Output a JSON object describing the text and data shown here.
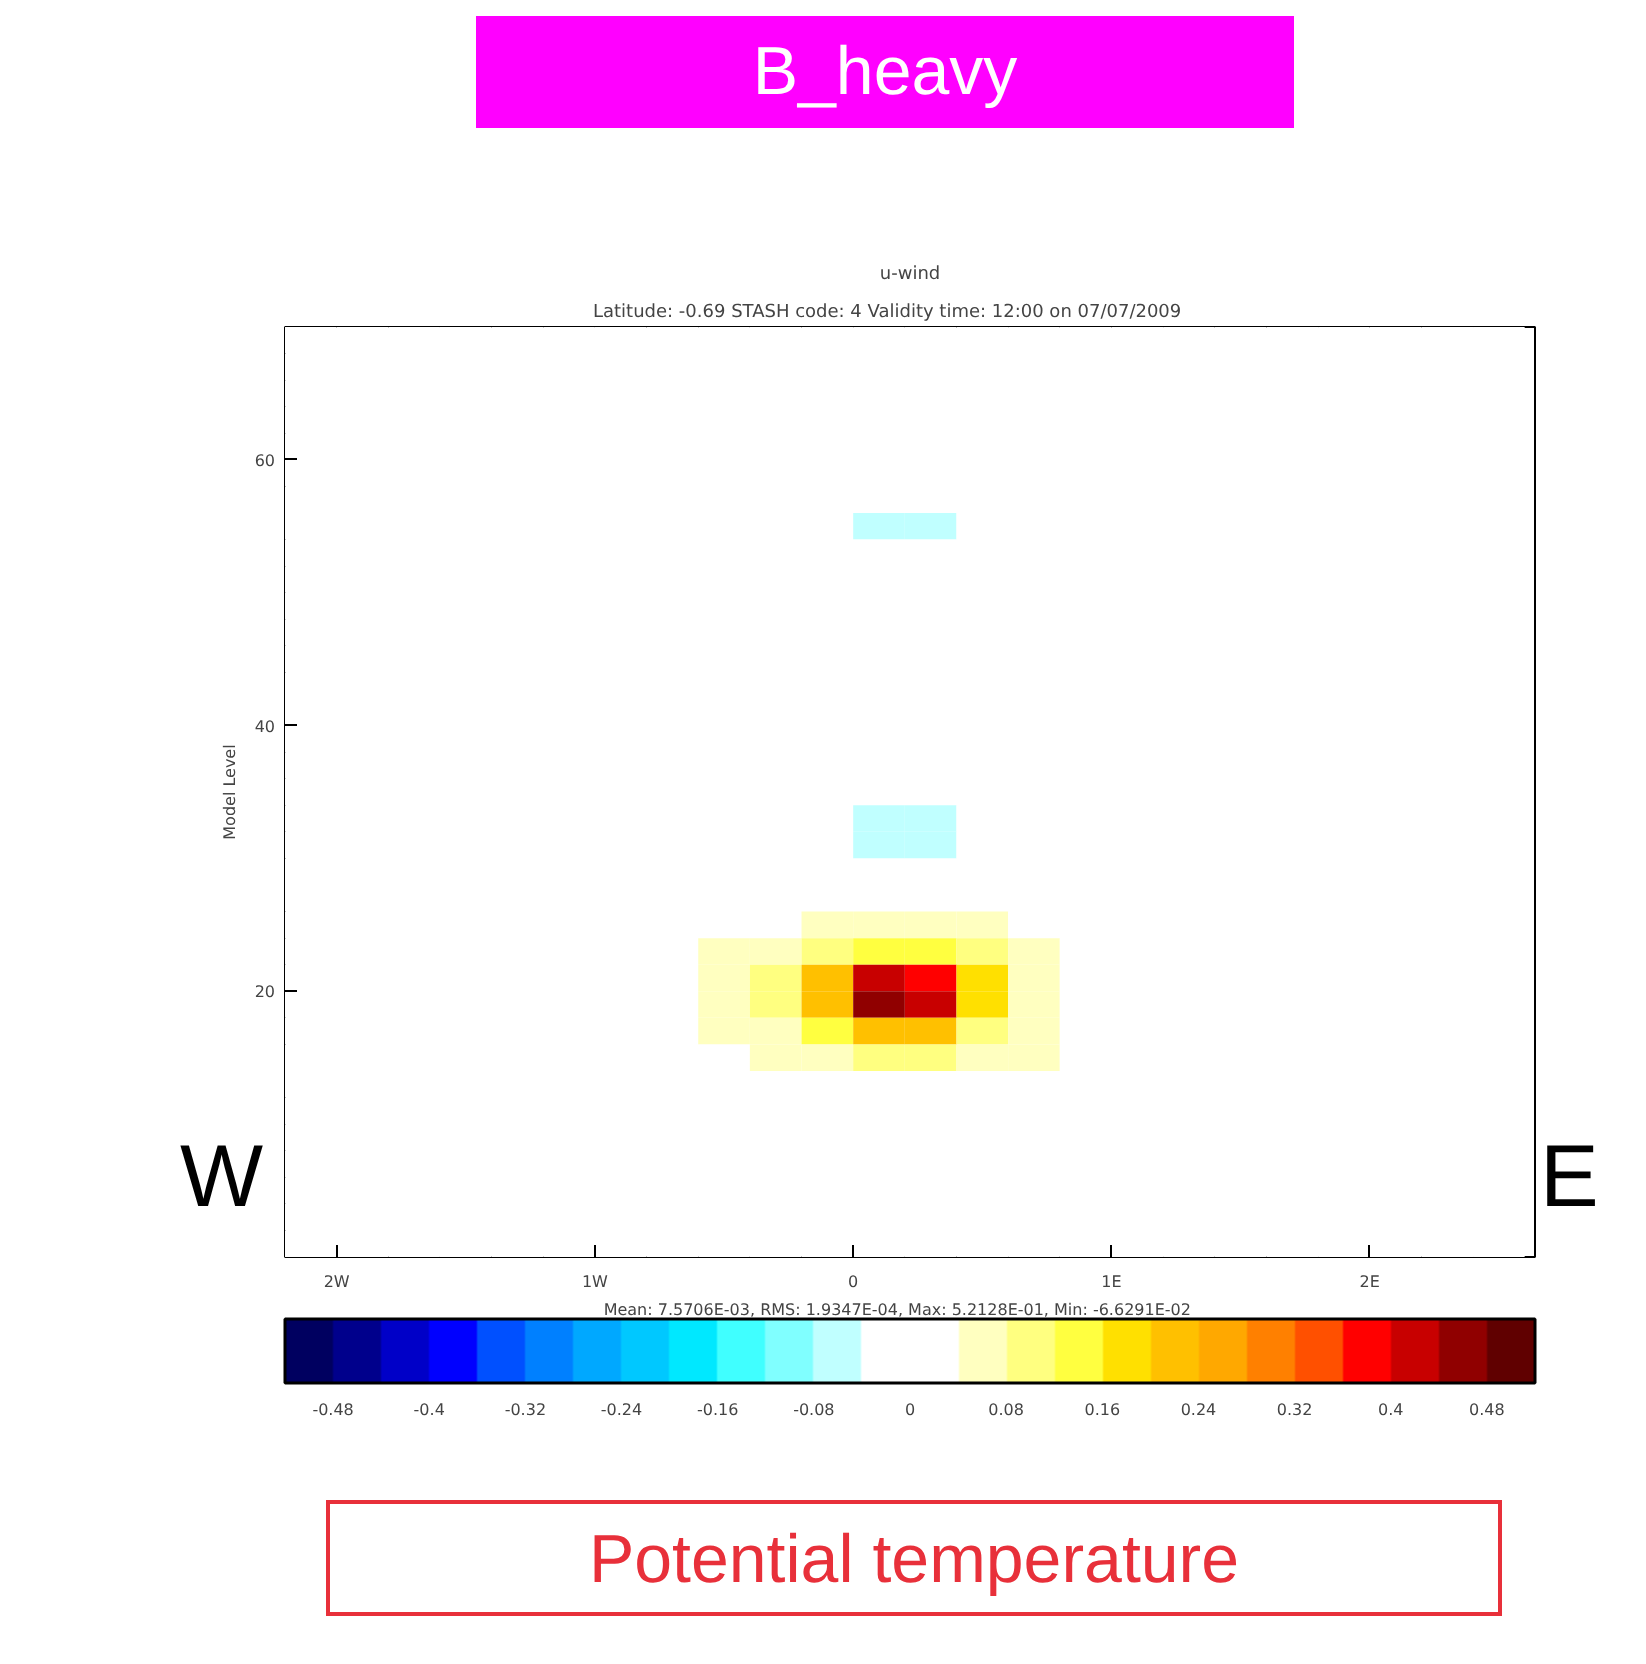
{
  "chart_data": {
    "type": "heatmap",
    "title": "u-wind",
    "subtitle": "Latitude:  -0.69  STASH code:      4  Validity time: 12:00 on 07/07/2009",
    "ylabel": "Model Level",
    "annotations": [
      "Mean: 7.5706E-03,  RMS:  1.9347E-04,  Max:  5.2128E-01,  Min: -6.6291E-02",
      "W",
      "E",
      "B_heavy",
      "Potential temperature"
    ],
    "x": [
      -2.1,
      -1.9,
      -1.7,
      -1.5,
      -1.3,
      -1.1,
      -0.9,
      -0.7,
      -0.5,
      -0.3,
      -0.1,
      0.1,
      0.3,
      0.5,
      0.7,
      0.9,
      1.1,
      1.3,
      1.5,
      1.7,
      1.9,
      2.1,
      2.3,
      2.5
    ],
    "y": [
      69,
      67,
      65,
      63,
      61,
      59,
      57,
      55,
      53,
      51,
      49,
      47,
      45,
      43,
      41,
      39,
      37,
      35,
      33,
      31,
      29,
      27,
      25,
      23,
      21,
      19,
      17,
      15,
      13,
      11,
      9,
      7,
      5,
      3,
      1
    ],
    "cells": [
      [
        0,
        0,
        0,
        0,
        0,
        0,
        0,
        0,
        0,
        0,
        0,
        0,
        0,
        0,
        0,
        0,
        0,
        0,
        0,
        0,
        0,
        0,
        0,
        0
      ],
      [
        0,
        0,
        0,
        0,
        0,
        0,
        0,
        0,
        0,
        0,
        0,
        0,
        0,
        0,
        0,
        0,
        0,
        0,
        0,
        0,
        0,
        0,
        0,
        0
      ],
      [
        0,
        0,
        0,
        0,
        0,
        0,
        0,
        0,
        0,
        0,
        0,
        0,
        0,
        0,
        0,
        0,
        0,
        0,
        0,
        0,
        0,
        0,
        0,
        0
      ],
      [
        0,
        0,
        0,
        0,
        0,
        0,
        0,
        0,
        0,
        0,
        0,
        0,
        0,
        0,
        0,
        0,
        0,
        0,
        0,
        0,
        0,
        0,
        0,
        0
      ],
      [
        0,
        0,
        0,
        0,
        0,
        0,
        0,
        0,
        0,
        0,
        0,
        0,
        0,
        0,
        0,
        0,
        0,
        0,
        0,
        0,
        0,
        0,
        0,
        0
      ],
      [
        0,
        0,
        0,
        0,
        0,
        0,
        0,
        0,
        0,
        0,
        0,
        0,
        0,
        0,
        0,
        0,
        0,
        0,
        0,
        0,
        0,
        0,
        0,
        0
      ],
      [
        0,
        0,
        0,
        0,
        0,
        0,
        0,
        0,
        0,
        0,
        0,
        0,
        0,
        0,
        0,
        0,
        0,
        0,
        0,
        0,
        0,
        0,
        0,
        0
      ],
      [
        0,
        0,
        0,
        0,
        0,
        0,
        0,
        0,
        0,
        0,
        0,
        -0.06,
        -0.06,
        0,
        0,
        0,
        0,
        0,
        0,
        0,
        0,
        0,
        0,
        0
      ],
      [
        0,
        0,
        0,
        0,
        0,
        0,
        0,
        0,
        0,
        0,
        0,
        0,
        0,
        0,
        0,
        0,
        0,
        0,
        0,
        0,
        0,
        0,
        0,
        0
      ],
      [
        0,
        0,
        0,
        0,
        0,
        0,
        0,
        0,
        0,
        0,
        0,
        0,
        0,
        0,
        0,
        0,
        0,
        0,
        0,
        0,
        0,
        0,
        0,
        0
      ],
      [
        0,
        0,
        0,
        0,
        0,
        0,
        0,
        0,
        0,
        0,
        0,
        0,
        0,
        0,
        0,
        0,
        0,
        0,
        0,
        0,
        0,
        0,
        0,
        0
      ],
      [
        0,
        0,
        0,
        0,
        0,
        0,
        0,
        0,
        0,
        0,
        0,
        0,
        0,
        0,
        0,
        0,
        0,
        0,
        0,
        0,
        0,
        0,
        0,
        0
      ],
      [
        0,
        0,
        0,
        0,
        0,
        0,
        0,
        0,
        0,
        0,
        0,
        0,
        0,
        0,
        0,
        0,
        0,
        0,
        0,
        0,
        0,
        0,
        0,
        0
      ],
      [
        0,
        0,
        0,
        0,
        0,
        0,
        0,
        0,
        0,
        0,
        0,
        0,
        0,
        0,
        0,
        0,
        0,
        0,
        0,
        0,
        0,
        0,
        0,
        0
      ],
      [
        0,
        0,
        0,
        0,
        0,
        0,
        0,
        0,
        0,
        0,
        0,
        0,
        0,
        0,
        0,
        0,
        0,
        0,
        0,
        0,
        0,
        0,
        0,
        0
      ],
      [
        0,
        0,
        0,
        0,
        0,
        0,
        0,
        0,
        0,
        0,
        0,
        0,
        0,
        0,
        0,
        0,
        0,
        0,
        0,
        0,
        0,
        0,
        0,
        0
      ],
      [
        0,
        0,
        0,
        0,
        0,
        0,
        0,
        0,
        0,
        0,
        0,
        0,
        0,
        0,
        0,
        0,
        0,
        0,
        0,
        0,
        0,
        0,
        0,
        0
      ],
      [
        0,
        0,
        0,
        0,
        0,
        0,
        0,
        0,
        0,
        0,
        0,
        0,
        0,
        0,
        0,
        0,
        0,
        0,
        0,
        0,
        0,
        0,
        0,
        0
      ],
      [
        0,
        0,
        0,
        0,
        0,
        0,
        0,
        0,
        0,
        0,
        0,
        -0.06,
        -0.06,
        0,
        0,
        0,
        0,
        0,
        0,
        0,
        0,
        0,
        0,
        0
      ],
      [
        0,
        0,
        0,
        0,
        0,
        0,
        0,
        0,
        0,
        0,
        0,
        -0.06,
        -0.06,
        0,
        0,
        0,
        0,
        0,
        0,
        0,
        0,
        0,
        0,
        0
      ],
      [
        0,
        0,
        0,
        0,
        0,
        0,
        0,
        0,
        0,
        0,
        0,
        0,
        0,
        0,
        0,
        0,
        0,
        0,
        0,
        0,
        0,
        0,
        0,
        0
      ],
      [
        0,
        0,
        0,
        0,
        0,
        0,
        0,
        0,
        0,
        0,
        0,
        0,
        0,
        0,
        0,
        0,
        0,
        0,
        0,
        0,
        0,
        0,
        0,
        0
      ],
      [
        0,
        0,
        0,
        0,
        0,
        0,
        0,
        0,
        0,
        0,
        0.06,
        0.06,
        0.06,
        0.06,
        0,
        0,
        0,
        0,
        0,
        0,
        0,
        0,
        0,
        0
      ],
      [
        0,
        0,
        0,
        0,
        0,
        0,
        0,
        0,
        0.06,
        0.06,
        0.1,
        0.14,
        0.14,
        0.1,
        0.06,
        0,
        0,
        0,
        0,
        0,
        0,
        0,
        0,
        0
      ],
      [
        0,
        0,
        0,
        0,
        0,
        0,
        0,
        0,
        0.06,
        0.1,
        0.22,
        0.42,
        0.38,
        0.18,
        0.06,
        0,
        0,
        0,
        0,
        0,
        0,
        0,
        0,
        0
      ],
      [
        0,
        0,
        0,
        0,
        0,
        0,
        0,
        0,
        0.06,
        0.1,
        0.22,
        0.46,
        0.42,
        0.18,
        0.06,
        0,
        0,
        0,
        0,
        0,
        0,
        0,
        0,
        0
      ],
      [
        0,
        0,
        0,
        0,
        0,
        0,
        0,
        0,
        0.06,
        0.06,
        0.14,
        0.22,
        0.22,
        0.1,
        0.06,
        0,
        0,
        0,
        0,
        0,
        0,
        0,
        0,
        0
      ],
      [
        0,
        0,
        0,
        0,
        0,
        0,
        0,
        0,
        0,
        0.06,
        0.06,
        0.1,
        0.1,
        0.06,
        0.06,
        0,
        0,
        0,
        0,
        0,
        0,
        0,
        0,
        0
      ],
      [
        0,
        0,
        0,
        0,
        0,
        0,
        0,
        0,
        0,
        0,
        0,
        0,
        0,
        0,
        0,
        0,
        0,
        0,
        0,
        0,
        0,
        0,
        0,
        0
      ],
      [
        0,
        0,
        0,
        0,
        0,
        0,
        0,
        0,
        0,
        0,
        0,
        0,
        0,
        0,
        0,
        0,
        0,
        0,
        0,
        0,
        0,
        0,
        0,
        0
      ],
      [
        0,
        0,
        0,
        0,
        0,
        0,
        0,
        0,
        0,
        0,
        0,
        0,
        0,
        0,
        0,
        0,
        0,
        0,
        0,
        0,
        0,
        0,
        0,
        0
      ],
      [
        0,
        0,
        0,
        0,
        0,
        0,
        0,
        0,
        0,
        0,
        0,
        0,
        0,
        0,
        0,
        0,
        0,
        0,
        0,
        0,
        0,
        0,
        0,
        0
      ],
      [
        0,
        0,
        0,
        0,
        0,
        0,
        0,
        0,
        0,
        0,
        0,
        0,
        0,
        0,
        0,
        0,
        0,
        0,
        0,
        0,
        0,
        0,
        0,
        0
      ],
      [
        0,
        0,
        0,
        0,
        0,
        0,
        0,
        0,
        0,
        0,
        0,
        0,
        0,
        0,
        0,
        0,
        0,
        0,
        0,
        0,
        0,
        0,
        0,
        0
      ],
      [
        0,
        0,
        0,
        0,
        0,
        0,
        0,
        0,
        0,
        0,
        0,
        0,
        0,
        0,
        0,
        0,
        0,
        0,
        0,
        0,
        0,
        0,
        0,
        0
      ]
    ],
    "colors": [
      "#000060",
      "#00008c",
      "#0000c8",
      "#0000ff",
      "#0050ff",
      "#0080ff",
      "#00a8ff",
      "#00c8ff",
      "#00e8ff",
      "#40ffff",
      "#80ffff",
      "#c0ffff",
      "#ffffff",
      "#ffffff",
      "#ffffc0",
      "#ffff80",
      "#ffff40",
      "#ffe000",
      "#ffc000",
      "#ffa800",
      "#ff8000",
      "#ff5000",
      "#ff0000",
      "#c80000",
      "#900000",
      "#600000"
    ],
    "clim": [
      -0.52,
      0.52
    ],
    "cticks": [
      -0.48,
      -0.4,
      -0.32,
      -0.24,
      -0.16,
      -0.08,
      0,
      0.08,
      0.16,
      0.24,
      0.32,
      0.4,
      0.48
    ],
    "xlim": [
      -2.2,
      2.64
    ],
    "ylim": [
      0,
      70
    ],
    "xticks": [
      {
        "value": -2,
        "label": "2W"
      },
      {
        "value": -1,
        "label": "1W"
      },
      0,
      {
        "value": 1,
        "label": "1E"
      },
      {
        "value": 2,
        "label": "2E"
      }
    ],
    "yticks": [
      20,
      40,
      60
    ]
  }
}
